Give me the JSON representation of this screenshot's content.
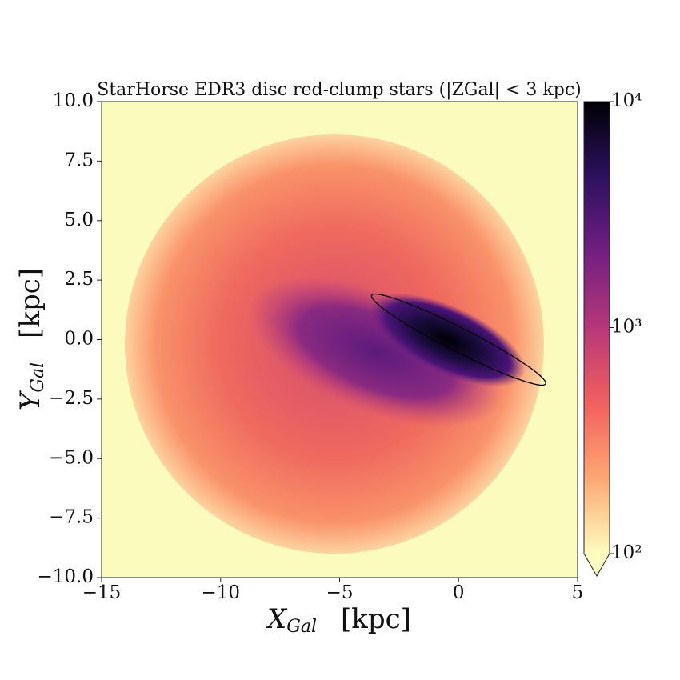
{
  "chart_data": {
    "type": "hexbin",
    "title": "StarHorse EDR3 disc red-clump stars (|ZGal| < 3 kpc)",
    "xlabel": {
      "symbol": "X",
      "sub": "Gal",
      "unit": "[kpc]"
    },
    "ylabel": {
      "symbol": "Y",
      "sub": "Gal",
      "unit": "[kpc]"
    },
    "xlim": [
      -15,
      5
    ],
    "xticks": [
      {
        "value": -15,
        "label": "−15"
      },
      {
        "value": -10,
        "label": "−10"
      },
      {
        "value": -5,
        "label": "−5"
      },
      0,
      5
    ],
    "ylim": [
      -10,
      10
    ],
    "yticks": [
      {
        "value": -10,
        "label": "−10.0"
      },
      {
        "value": -7.5,
        "label": "−7.5"
      },
      {
        "value": -5,
        "label": "−5.0"
      },
      {
        "value": -2.5,
        "label": "−2.5"
      },
      {
        "value": 0,
        "label": "0.0"
      },
      {
        "value": 2.5,
        "label": "2.5"
      },
      {
        "value": 5,
        "label": "5.0"
      },
      {
        "value": 7.5,
        "label": "7.5"
      },
      {
        "value": 10,
        "label": "10.0"
      }
    ],
    "colorbar": {
      "log": true,
      "lim": [
        100,
        10000
      ],
      "extend": "min",
      "ticks": [
        {
          "value": 100,
          "label": "10²"
        },
        {
          "value": 1000,
          "label": "10³"
        },
        {
          "value": 10000,
          "label": "10⁴"
        }
      ],
      "colormap": [
        "#fcfdbf",
        "#fea772",
        "#f1605d",
        "#b73779",
        "#721f81",
        "#2c115f",
        "#000004"
      ]
    },
    "ellipse": {
      "center": [
        0,
        0
      ],
      "width": 8.2,
      "height": 1.0,
      "angle": -27
    }
  }
}
